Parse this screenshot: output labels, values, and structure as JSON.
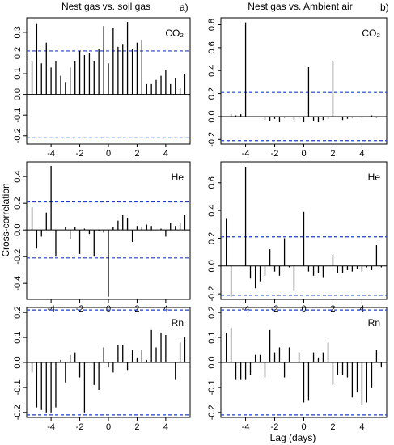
{
  "figure": {
    "shared_ylabel": "Cross-correlation",
    "shared_xlabel": "Lag (days)"
  },
  "chart_data": [
    {
      "type": "bar",
      "title": "Nest gas vs. soil gas",
      "panel_letter": "a)",
      "series_label": "CO₂",
      "ylim": [
        -0.24,
        0.37
      ],
      "yticks": [
        -0.2,
        -0.1,
        0.0,
        0.1,
        0.2,
        0.3
      ],
      "xlim": [
        -5.7,
        5.7
      ],
      "xticks": [
        -4,
        -2,
        0,
        2,
        4
      ],
      "confidence_limit": 0.21,
      "x": [
        -5.33,
        -5.0,
        -4.67,
        -4.33,
        -4.0,
        -3.67,
        -3.33,
        -3.0,
        -2.67,
        -2.33,
        -2.0,
        -1.67,
        -1.33,
        -1.0,
        -0.67,
        -0.33,
        0.0,
        0.33,
        0.67,
        1.0,
        1.33,
        1.67,
        2.0,
        2.33,
        2.67,
        3.0,
        3.33,
        3.67,
        4.0,
        4.33,
        4.67,
        5.0,
        5.33
      ],
      "values": [
        0.16,
        0.34,
        0.15,
        0.25,
        0.13,
        0.16,
        0.09,
        0.06,
        0.13,
        0.16,
        0.21,
        0.19,
        0.2,
        0.16,
        0.22,
        0.33,
        0.15,
        0.32,
        0.23,
        0.24,
        0.35,
        0.22,
        0.25,
        0.26,
        0.05,
        0.05,
        0.07,
        0.09,
        0.12,
        0.05,
        0.08,
        0.03,
        0.1
      ]
    },
    {
      "type": "bar",
      "title": "Nest gas vs. Ambient air",
      "panel_letter": "b)",
      "series_label": "CO₂",
      "ylim": [
        -0.24,
        0.86
      ],
      "yticks": [
        -0.2,
        0.0,
        0.2,
        0.4,
        0.6,
        0.8
      ],
      "xlim": [
        -5.7,
        5.7
      ],
      "xticks": [
        -4,
        -2,
        0,
        2,
        4
      ],
      "confidence_limit": 0.21,
      "x": [
        -5.33,
        -5.0,
        -4.67,
        -4.33,
        -4.0,
        -3.67,
        -3.33,
        -3.0,
        -2.67,
        -2.33,
        -2.0,
        -1.67,
        -1.33,
        -1.0,
        -0.67,
        -0.33,
        0.0,
        0.33,
        0.67,
        1.0,
        1.33,
        1.67,
        2.0,
        2.33,
        2.67,
        3.0,
        3.33,
        3.67,
        4.0,
        4.33,
        4.67,
        5.0,
        5.33
      ],
      "values": [
        0.0,
        0.02,
        0.01,
        0.02,
        0.82,
        0.0,
        0.0,
        0.0,
        -0.03,
        -0.04,
        -0.02,
        -0.05,
        -0.01,
        0.0,
        -0.03,
        -0.01,
        -0.05,
        0.43,
        -0.04,
        -0.05,
        -0.03,
        -0.02,
        0.48,
        0.0,
        -0.03,
        -0.02,
        -0.01,
        0.0,
        -0.01,
        0.0,
        0.01,
        -0.01,
        0.0
      ]
    },
    {
      "type": "bar",
      "series_label": "He",
      "ylim": [
        -0.52,
        0.51
      ],
      "yticks": [
        -0.4,
        -0.2,
        0.0,
        0.2,
        0.4
      ],
      "xlim": [
        -5.7,
        5.7
      ],
      "xticks": [
        -4,
        -2,
        0,
        2,
        4
      ],
      "confidence_limit": 0.21,
      "x": [
        -5.33,
        -5.0,
        -4.67,
        -4.33,
        -4.0,
        -3.67,
        -3.33,
        -3.0,
        -2.67,
        -2.33,
        -2.0,
        -1.67,
        -1.33,
        -1.0,
        -0.67,
        -0.33,
        0.0,
        0.33,
        0.67,
        1.0,
        1.33,
        1.67,
        2.0,
        2.33,
        2.67,
        3.0,
        3.33,
        3.67,
        4.0,
        4.33,
        4.67,
        5.0,
        5.33
      ],
      "values": [
        0.17,
        -0.14,
        -0.05,
        0.13,
        0.48,
        -0.2,
        0.0,
        0.02,
        -0.07,
        0.02,
        -0.18,
        0.01,
        -0.03,
        -0.2,
        -0.01,
        -0.02,
        -0.5,
        0.02,
        0.07,
        0.11,
        0.09,
        -0.09,
        0.03,
        0.02,
        0.04,
        0.03,
        0.0,
        0.01,
        -0.05,
        0.05,
        0.03,
        0.05,
        0.11
      ]
    },
    {
      "type": "bar",
      "series_label": "He",
      "ylim": [
        -0.24,
        0.75
      ],
      "yticks": [
        -0.2,
        0.0,
        0.2,
        0.4,
        0.6
      ],
      "xlim": [
        -5.7,
        5.7
      ],
      "xticks": [
        -4,
        -2,
        0,
        2,
        4
      ],
      "confidence_limit": 0.21,
      "x": [
        -5.33,
        -5.0,
        -4.67,
        -4.33,
        -4.0,
        -3.67,
        -3.33,
        -3.0,
        -2.67,
        -2.33,
        -2.0,
        -1.67,
        -1.33,
        -1.0,
        -0.67,
        -0.33,
        0.0,
        0.33,
        0.67,
        1.0,
        1.33,
        1.67,
        2.0,
        2.33,
        2.67,
        3.0,
        3.33,
        3.67,
        4.0,
        4.33,
        4.67,
        5.0,
        5.33
      ],
      "values": [
        0.34,
        -0.22,
        0.0,
        0.0,
        0.71,
        -0.09,
        -0.16,
        -0.11,
        -0.07,
        0.12,
        -0.04,
        -0.07,
        0.2,
        -0.01,
        -0.18,
        0.0,
        0.39,
        -0.04,
        -0.07,
        -0.05,
        -0.08,
        0.0,
        0.08,
        -0.05,
        -0.05,
        -0.03,
        -0.04,
        -0.02,
        -0.04,
        -0.01,
        -0.03,
        0.15,
        -0.01
      ]
    },
    {
      "type": "bar",
      "series_label": "Rn",
      "ylim": [
        -0.22,
        0.22
      ],
      "yticks": [
        -0.2,
        -0.1,
        0.0,
        0.1,
        0.2
      ],
      "xlim": [
        -5.7,
        5.7
      ],
      "xticks": [
        -4,
        -2,
        0,
        2,
        4
      ],
      "confidence_limit": 0.21,
      "x": [
        -5.33,
        -5.0,
        -4.67,
        -4.33,
        -4.0,
        -3.67,
        -3.33,
        -3.0,
        -2.67,
        -2.33,
        -2.0,
        -1.67,
        -1.33,
        -1.0,
        -0.67,
        -0.33,
        0.0,
        0.33,
        0.67,
        1.0,
        1.33,
        1.67,
        2.0,
        2.33,
        2.67,
        3.0,
        3.33,
        3.67,
        4.0,
        4.33,
        4.67,
        5.0,
        5.33
      ],
      "values": [
        -0.04,
        -0.18,
        -0.19,
        -0.2,
        -0.2,
        -0.18,
        0.01,
        -0.08,
        0.03,
        0.04,
        -0.06,
        -0.2,
        0.0,
        -0.09,
        -0.11,
        0.06,
        -0.02,
        -0.04,
        0.07,
        0.07,
        -0.03,
        0.05,
        0.02,
        0.05,
        0.01,
        0.13,
        0.06,
        0.12,
        0.11,
        0.0,
        -0.07,
        0.08,
        0.1
      ]
    },
    {
      "type": "bar",
      "series_label": "Rn",
      "ylim": [
        -0.22,
        0.22
      ],
      "yticks": [
        -0.2,
        -0.1,
        0.0,
        0.1,
        0.2
      ],
      "xlim": [
        -5.7,
        5.7
      ],
      "xticks": [
        -4,
        -2,
        0,
        2,
        4
      ],
      "confidence_limit": 0.21,
      "x": [
        -5.33,
        -5.0,
        -4.67,
        -4.33,
        -4.0,
        -3.67,
        -3.33,
        -3.0,
        -2.67,
        -2.33,
        -2.0,
        -1.67,
        -1.33,
        -1.0,
        -0.67,
        -0.33,
        0.0,
        0.33,
        0.67,
        1.0,
        1.33,
        1.67,
        2.0,
        2.33,
        2.67,
        3.0,
        3.33,
        3.67,
        4.0,
        4.33,
        4.67,
        5.0,
        5.33
      ],
      "values": [
        0.12,
        0.14,
        -0.07,
        -0.07,
        -0.07,
        -0.05,
        0.03,
        0.03,
        -0.06,
        0.13,
        0.04,
        0.06,
        -0.06,
        0.06,
        0.0,
        0.04,
        -0.16,
        -0.15,
        0.04,
        0.02,
        0.04,
        0.08,
        -0.09,
        -0.05,
        -0.05,
        -0.06,
        -0.14,
        -0.12,
        -0.17,
        -0.16,
        -0.1,
        0.05,
        -0.02
      ]
    }
  ]
}
